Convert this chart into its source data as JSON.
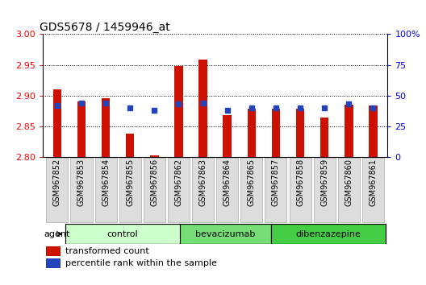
{
  "title": "GDS5678 / 1459946_at",
  "samples": [
    "GSM967852",
    "GSM967853",
    "GSM967854",
    "GSM967855",
    "GSM967856",
    "GSM967862",
    "GSM967863",
    "GSM967864",
    "GSM967865",
    "GSM967857",
    "GSM967858",
    "GSM967859",
    "GSM967860",
    "GSM967861"
  ],
  "red_values": [
    2.91,
    2.89,
    2.895,
    2.838,
    2.802,
    2.948,
    2.958,
    2.868,
    2.879,
    2.878,
    2.878,
    2.864,
    2.885,
    2.884
  ],
  "blue_percentile": [
    42,
    44,
    44,
    40,
    38,
    43,
    44,
    38,
    40,
    40,
    40,
    40,
    43,
    40
  ],
  "groups": [
    {
      "name": "control",
      "indices": [
        0,
        1,
        2,
        3,
        4
      ],
      "color": "#ccffcc"
    },
    {
      "name": "bevacizumab",
      "indices": [
        5,
        6,
        7,
        8
      ],
      "color": "#77dd77"
    },
    {
      "name": "dibenzazepine",
      "indices": [
        9,
        10,
        11,
        12,
        13
      ],
      "color": "#44cc44"
    }
  ],
  "ylim_left": [
    2.8,
    3.0
  ],
  "ylim_right": [
    0,
    100
  ],
  "yticks_left": [
    2.8,
    2.85,
    2.9,
    2.95,
    3.0
  ],
  "yticks_right": [
    0,
    25,
    50,
    75,
    100
  ],
  "bar_width": 0.35,
  "red_color": "#cc1100",
  "blue_color": "#2244bb",
  "baseline": 2.8,
  "bg_color": "#ffffff",
  "grid_color": "#000000",
  "xlabel_box_color": "#dddddd"
}
